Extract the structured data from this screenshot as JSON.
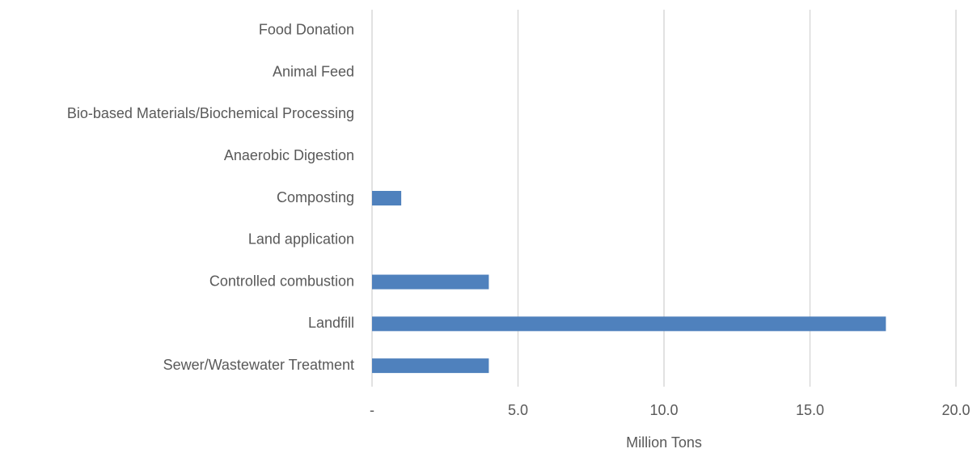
{
  "chart_data": {
    "type": "barh",
    "x_label": "Million Tons",
    "categories": [
      "Food Donation",
      "Animal Feed",
      "Bio-based Materials/Biochemical Processing",
      "Anaerobic Digestion",
      "Composting",
      "Land application",
      "Controlled combustion",
      "Landfill",
      "Sewer/Wastewater Treatment"
    ],
    "values": [
      0,
      0,
      0,
      0,
      1.0,
      0,
      4.0,
      17.6,
      4.0
    ],
    "color": "#4f81bd",
    "xlim": [
      0,
      20
    ],
    "xticks": [
      {
        "value": 0,
        "label": "-"
      },
      {
        "value": 5,
        "label": "5.0"
      },
      {
        "value": 10,
        "label": "10.0"
      },
      {
        "value": 15,
        "label": "15.0"
      },
      {
        "value": 20,
        "label": "20.0"
      }
    ],
    "grid": true
  }
}
